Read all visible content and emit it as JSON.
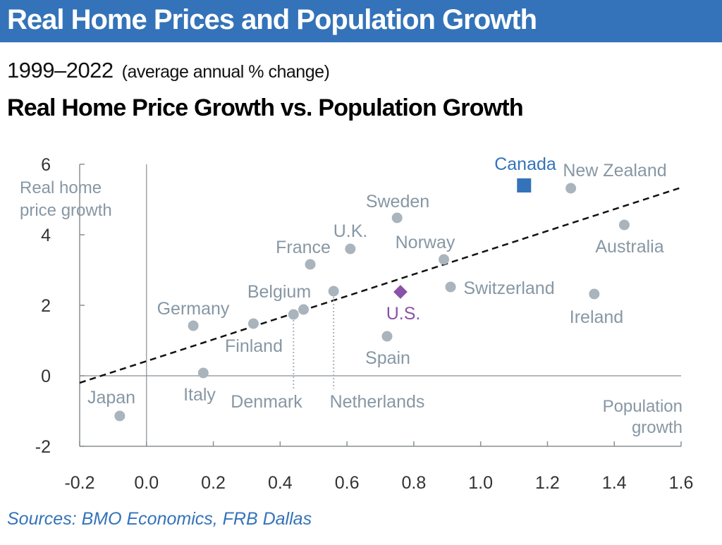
{
  "header": {
    "banner_title": "Real Home Prices and Population Growth",
    "period": "1999–2022",
    "period_note": "(average annual % change)",
    "chart_title": "Real Home Price Growth vs. Population Growth",
    "source": "Sources: BMO Economics, FRB Dallas"
  },
  "chart_data": {
    "type": "scatter",
    "title": "Real Home Price Growth vs. Population Growth",
    "xlabel": "Population growth",
    "ylabel": "Real home price growth",
    "xlabel_lines": [
      "Population",
      "growth"
    ],
    "ylabel_lines": [
      "Real home",
      "price growth"
    ],
    "xlim": [
      -0.2,
      1.6
    ],
    "ylim": [
      -2,
      6
    ],
    "xticks": [
      "-0.2",
      "0.0",
      "0.2",
      "0.4",
      "0.6",
      "0.8",
      "1.0",
      "1.2",
      "1.4",
      "1.6"
    ],
    "yticks": [
      "-2",
      "0",
      "2",
      "4",
      "6"
    ],
    "points": [
      {
        "name": "Japan",
        "x": -0.08,
        "y": -1.14,
        "type": "other"
      },
      {
        "name": "Italy",
        "x": 0.17,
        "y": 0.08,
        "type": "other"
      },
      {
        "name": "Germany",
        "x": 0.14,
        "y": 1.42,
        "type": "other"
      },
      {
        "name": "Finland",
        "x": 0.32,
        "y": 1.48,
        "type": "other"
      },
      {
        "name": "Denmark",
        "x": 0.44,
        "y": 1.74,
        "type": "other"
      },
      {
        "name": "Belgium",
        "x": 0.47,
        "y": 1.88,
        "type": "other"
      },
      {
        "name": "France",
        "x": 0.49,
        "y": 3.16,
        "type": "other"
      },
      {
        "name": "Netherlands",
        "x": 0.56,
        "y": 2.4,
        "type": "other"
      },
      {
        "name": "U.K.",
        "x": 0.61,
        "y": 3.6,
        "type": "other"
      },
      {
        "name": "Spain",
        "x": 0.72,
        "y": 1.12,
        "type": "other"
      },
      {
        "name": "Sweden",
        "x": 0.75,
        "y": 4.48,
        "type": "other"
      },
      {
        "name": "U.S.",
        "x": 0.76,
        "y": 2.38,
        "type": "us"
      },
      {
        "name": "Norway",
        "x": 0.89,
        "y": 3.3,
        "type": "other"
      },
      {
        "name": "Switzerland",
        "x": 0.91,
        "y": 2.52,
        "type": "other"
      },
      {
        "name": "Canada",
        "x": 1.13,
        "y": 5.4,
        "type": "canada"
      },
      {
        "name": "New Zealand",
        "x": 1.27,
        "y": 5.32,
        "type": "other"
      },
      {
        "name": "Australia",
        "x": 1.43,
        "y": 4.28,
        "type": "other"
      },
      {
        "name": "Ireland",
        "x": 1.34,
        "y": 2.32,
        "type": "other"
      }
    ],
    "trendline": {
      "x": [
        -0.2,
        1.6
      ],
      "y": [
        -0.2,
        5.34
      ],
      "style": "dashed"
    },
    "colors": {
      "other": "#a9b4bd",
      "label": "#8797a4",
      "canada": "#3473b9",
      "us": "#8a52a8",
      "trend": "#111111",
      "banner": "#3473b9"
    },
    "grid": false
  }
}
